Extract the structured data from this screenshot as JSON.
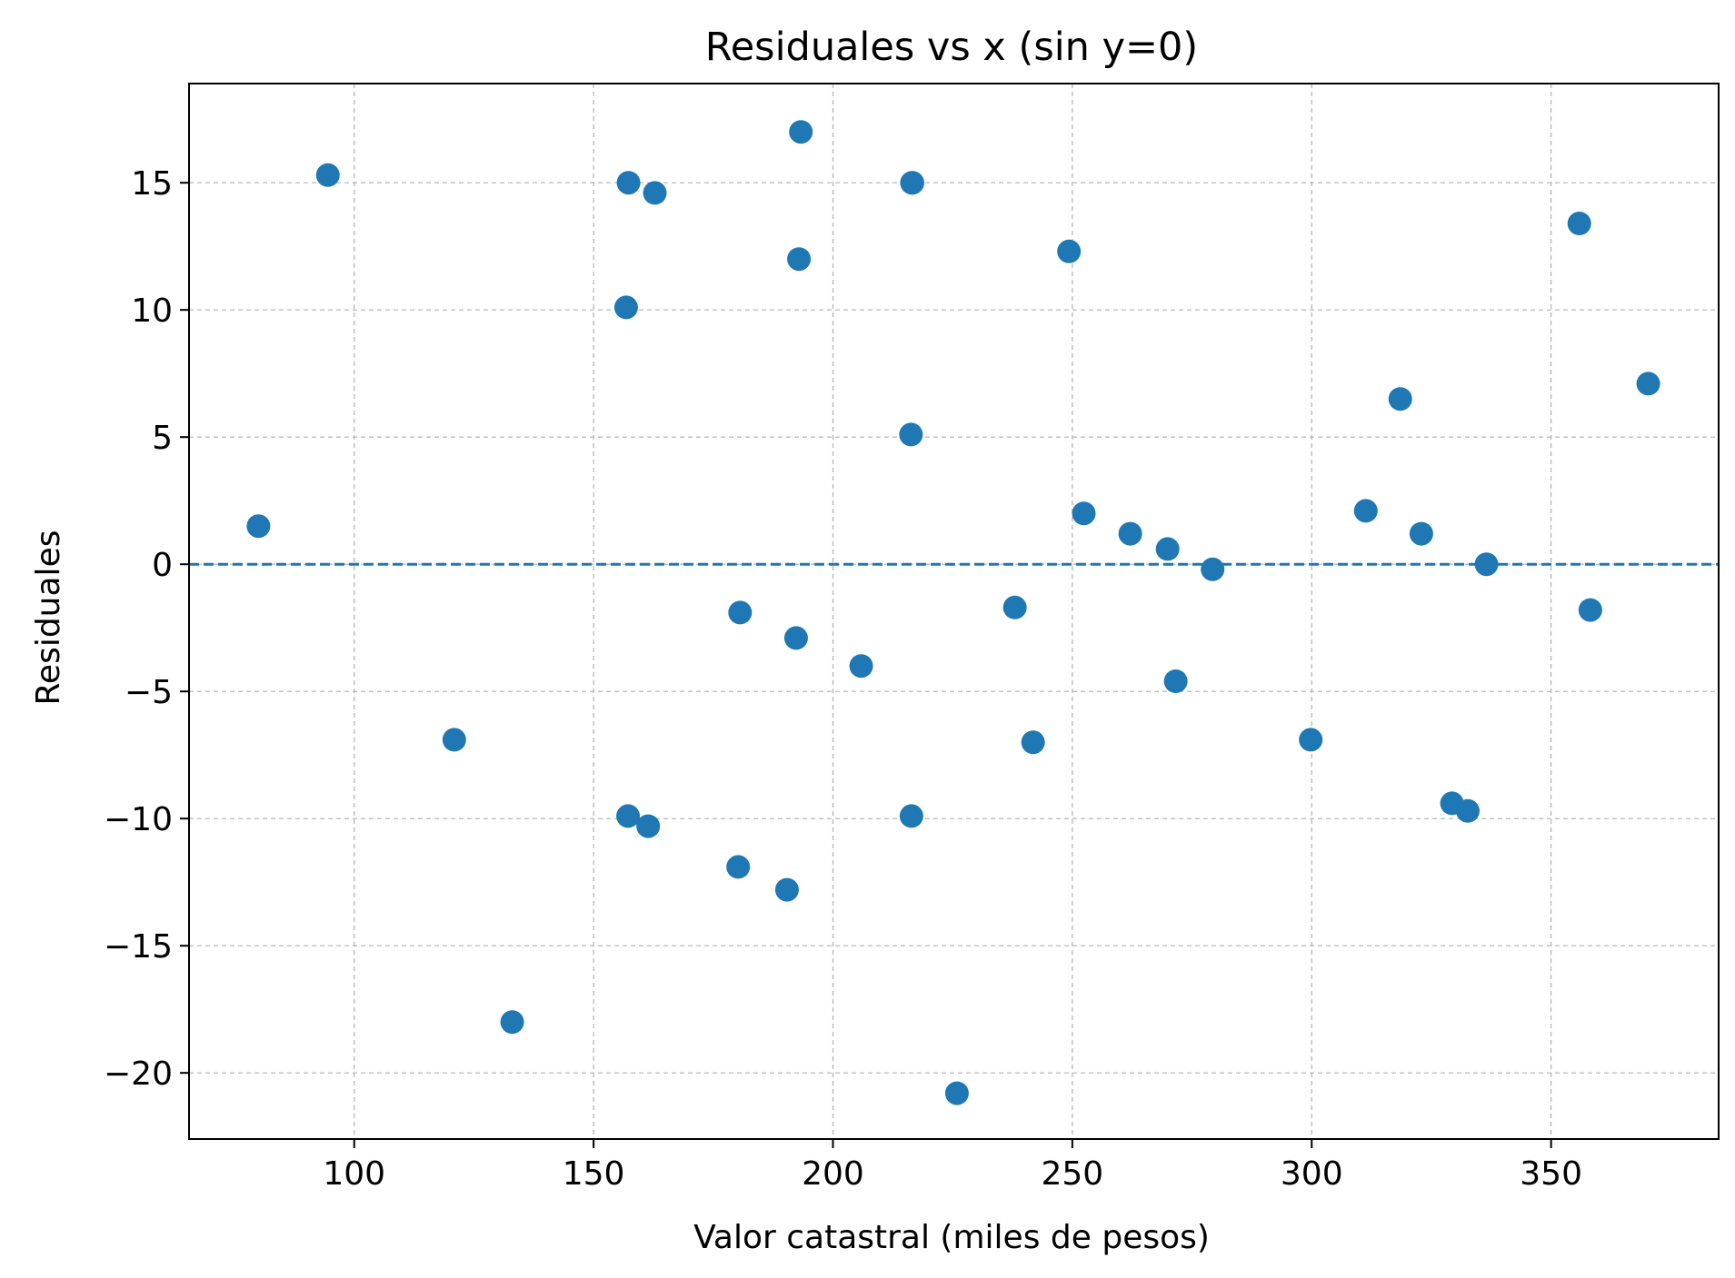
{
  "chart_data": {
    "type": "scatter",
    "title": "Residuales vs x (sin y=0)",
    "xlabel": "Valor catastral (miles de pesos)",
    "ylabel": "Residuales",
    "xlim": [
      65.5,
      385
    ],
    "ylim": [
      -22.6,
      18.9
    ],
    "xticks": [
      100,
      150,
      200,
      250,
      300,
      350
    ],
    "xtick_labels": [
      "100",
      "150",
      "200",
      "250",
      "300",
      "350"
    ],
    "yticks": [
      15,
      10,
      5,
      0,
      -5,
      -10,
      -15,
      -20
    ],
    "ytick_labels": [
      "15",
      "10",
      "5",
      "0",
      "−5",
      "−10",
      "−15",
      "−20"
    ],
    "grid": true,
    "reference_line": {
      "y": 0,
      "style": "dashed"
    },
    "marker_color": "#1f77b4",
    "series": [
      {
        "x": [
          80.0,
          94.5,
          120.9,
          133.0,
          156.8,
          157.2,
          157.3,
          161.4,
          162.8,
          180.2,
          180.6,
          190.4,
          192.3,
          192.9,
          193.3,
          205.9,
          216.3,
          216.4,
          216.5,
          216.6,
          225.9,
          238.0,
          241.8,
          249.3,
          252.4,
          262.1,
          269.9,
          271.6,
          279.3,
          299.8,
          311.3,
          318.5,
          322.9,
          329.3,
          332.6,
          336.5,
          355.9,
          358.2,
          370.3
        ],
        "y": [
          1.5,
          15.3,
          -6.9,
          -18.0,
          10.1,
          -9.9,
          15.0,
          -10.3,
          14.6,
          -11.9,
          -1.9,
          -12.8,
          -2.9,
          12.0,
          17.0,
          -4.0,
          5.1,
          -9.9,
          15.0,
          15.0,
          -20.8,
          -1.7,
          -7.0,
          12.3,
          2.0,
          1.2,
          0.6,
          -4.6,
          -0.2,
          -6.9,
          2.1,
          6.5,
          1.2,
          -9.4,
          -9.7,
          0.0,
          13.4,
          -1.8,
          7.1
        ]
      }
    ]
  }
}
